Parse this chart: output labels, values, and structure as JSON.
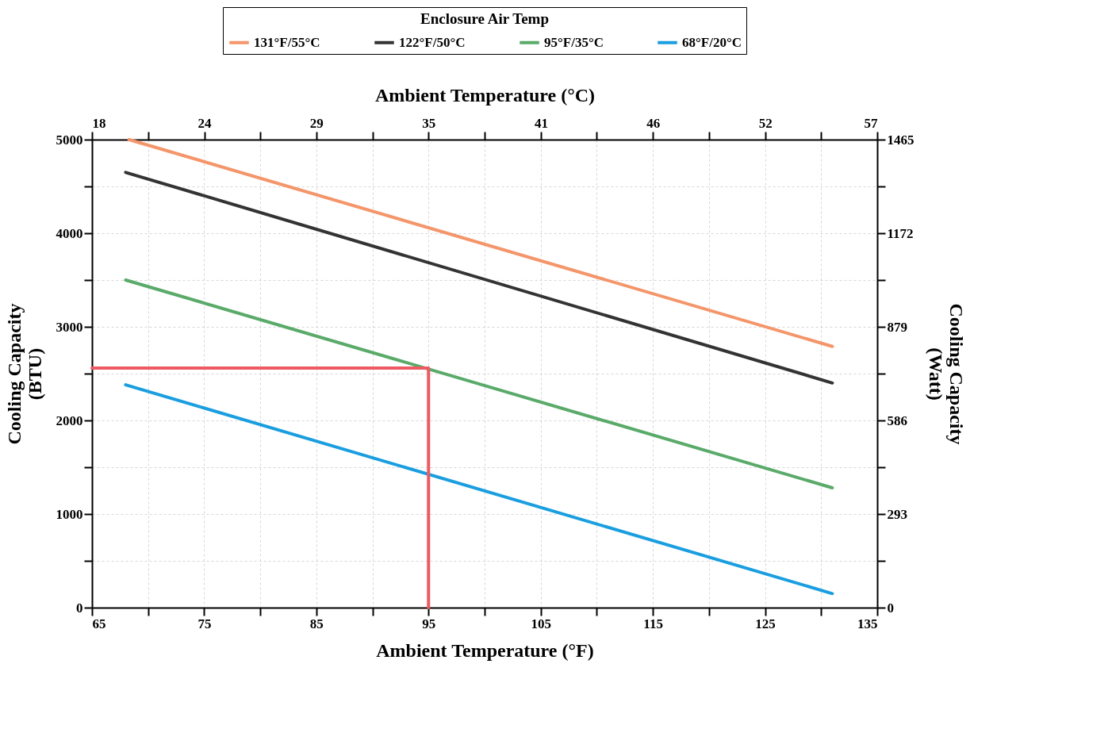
{
  "chart_data": {
    "type": "line",
    "xlabel": "Ambient Temperature (°F)",
    "x2label": "Ambient Temperature (°C)",
    "ylabel": "Cooling Capacity\n(BTU)",
    "y2label": "Cooling Capacity\n(Watt)",
    "legend_title": "Enclosure Air Temp",
    "legend": "top",
    "xlim": [
      65,
      135
    ],
    "xticks": [
      65,
      {
        "value": 70,
        "label": null
      },
      75,
      {
        "value": 80,
        "label": null
      },
      85,
      {
        "value": 90,
        "label": null
      },
      95,
      {
        "value": 100,
        "label": null
      },
      105,
      {
        "value": 110,
        "label": null
      },
      115,
      {
        "value": 120,
        "label": null
      },
      125,
      {
        "value": 130,
        "label": null
      },
      135
    ],
    "x2lim": [
      18.33,
      57.22
    ],
    "x2ticks": [
      {
        "value": 18.33,
        "label": "18"
      },
      {
        "value": 21.11,
        "label": null
      },
      {
        "value": 23.89,
        "label": "24"
      },
      {
        "value": 26.67,
        "label": null
      },
      {
        "value": 29.44,
        "label": "29"
      },
      {
        "value": 32.22,
        "label": null
      },
      35,
      {
        "value": 37.78,
        "label": null
      },
      {
        "value": 40.56,
        "label": "41"
      },
      {
        "value": 43.33,
        "label": null
      },
      {
        "value": 46.11,
        "label": "46"
      },
      {
        "value": 48.89,
        "label": null
      },
      {
        "value": 51.67,
        "label": "52"
      },
      {
        "value": 54.44,
        "label": null
      },
      {
        "value": 57.22,
        "label": "57"
      }
    ],
    "ylim": [
      0,
      5000
    ],
    "yticks": [
      0,
      {
        "value": 500,
        "label": null
      },
      1000,
      {
        "value": 1500,
        "label": null
      },
      2000,
      {
        "value": 2500,
        "label": null
      },
      3000,
      {
        "value": 3500,
        "label": null
      },
      4000,
      {
        "value": 4500,
        "label": null
      },
      5000
    ],
    "y2lim": [
      0,
      1465
    ],
    "y2ticks": [
      0,
      {
        "value": 146.5,
        "label": null
      },
      293,
      {
        "value": 439.5,
        "label": null
      },
      586,
      {
        "value": 732.5,
        "label": null
      },
      879,
      {
        "value": 1025.5,
        "label": null
      },
      1172,
      {
        "value": 1318.5,
        "label": null
      },
      1465
    ],
    "grid": true,
    "x": [
      68,
      131
    ],
    "series": [
      {
        "name": "131°F/55°C",
        "color": "#f4956a",
        "x": [
          68.3,
          131
        ],
        "values": [
          5000,
          2790
        ]
      },
      {
        "name": "122°F/50°C",
        "color": "#333333",
        "values": [
          4650,
          2400
        ]
      },
      {
        "name": "95°F/35°C",
        "color": "#5aaa6a",
        "values": [
          3500,
          1280
        ]
      },
      {
        "name": "68°F/20°C",
        "color": "#1a9ee0",
        "values": [
          2380,
          150
        ]
      },
      {
        "color": "#ee5a64",
        "x": [
          65,
          95,
          95
        ],
        "values": [
          2560,
          2560,
          0
        ]
      }
    ]
  }
}
